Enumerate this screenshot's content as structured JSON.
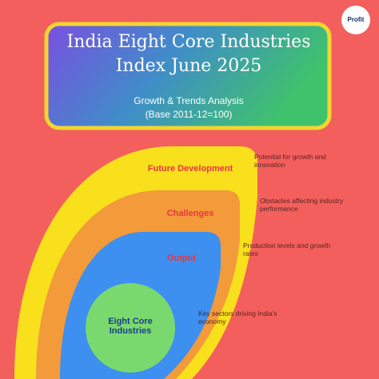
{
  "logo": {
    "text": "Profit"
  },
  "header": {
    "title_line1": "India Eight Core Industries",
    "title_line2": "Index June 2025",
    "subtitle_line1": "Growth & Trends Analysis",
    "subtitle_line2": "(Base 2011-12=100)"
  },
  "layers": [
    {
      "label": "Future Development",
      "description": "Potential for growth and innovation"
    },
    {
      "label": "Challenges",
      "description": "Obstacles affecting industry performance"
    },
    {
      "label": "Output",
      "description": "Production levels and growth rates"
    },
    {
      "label": "Eight Core Industries",
      "description": "Key sectors driving India's economy"
    }
  ]
}
